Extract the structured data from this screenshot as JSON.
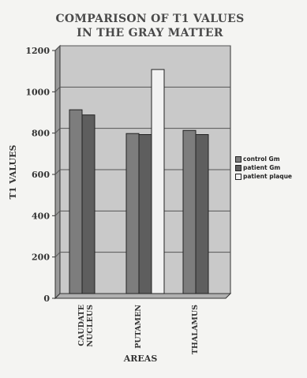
{
  "chart_data": {
    "type": "bar",
    "title_lines": [
      "COMPARISON OF T1 VALUES",
      "IN THE GRAY MATTER"
    ],
    "xlabel": "AREAS",
    "ylabel": "T1 VALUES",
    "categories": [
      [
        "CAUDATE",
        "NUCLEUS"
      ],
      [
        "PUTAMEN"
      ],
      [
        "THALAMUS"
      ]
    ],
    "ylim": [
      0,
      1200
    ],
    "yticks": [
      0,
      200,
      400,
      600,
      800,
      1000,
      1200
    ],
    "grid": true,
    "legend_position": "right",
    "series": [
      {
        "name": "control Gm",
        "values": [
          890,
          775,
          790
        ],
        "color": "#7d7d7d"
      },
      {
        "name": "patient Gm",
        "values": [
          865,
          770,
          770
        ],
        "color": "#5e5e5e"
      },
      {
        "name": "patient plaque",
        "values": [
          null,
          1085,
          null
        ],
        "color": "#f2f2f2"
      }
    ],
    "plot_background": "#c9c9c9",
    "wall_color": "#9a9a9a"
  }
}
